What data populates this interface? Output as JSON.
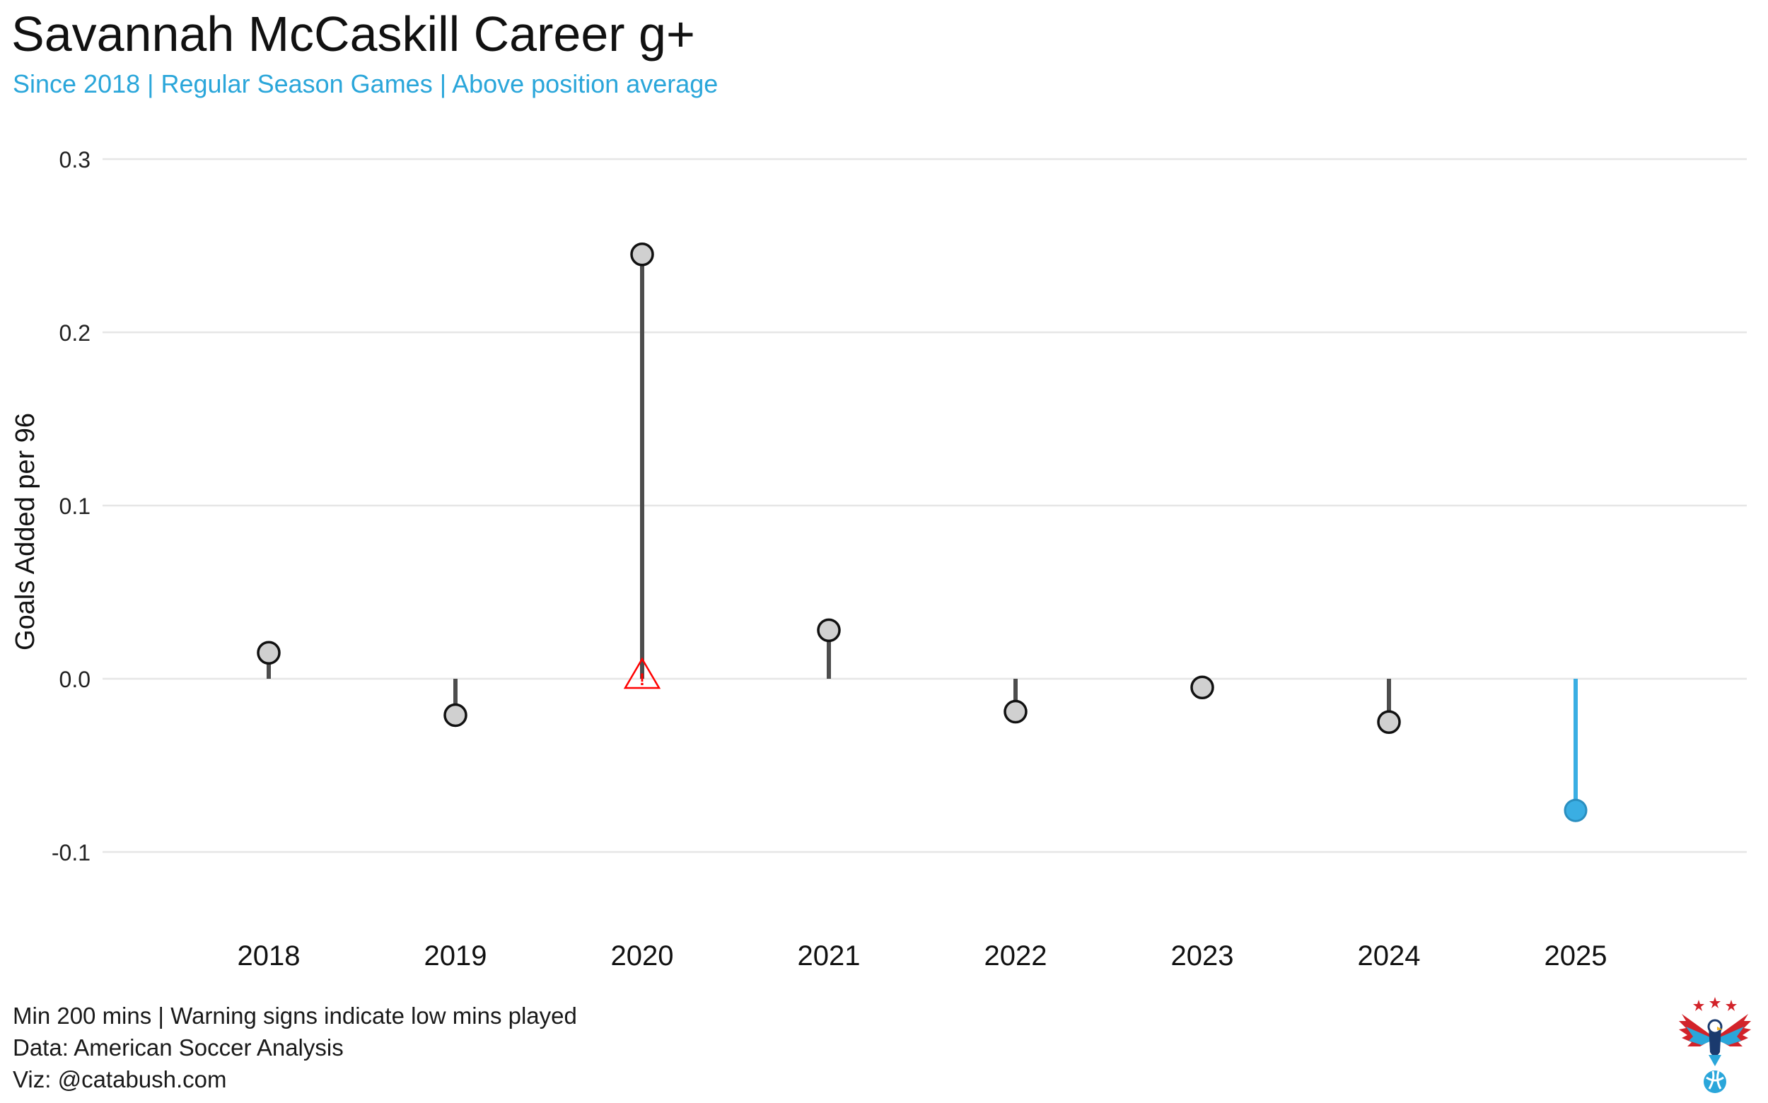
{
  "header": {
    "title": "Savannah McCaskill Career g+",
    "subtitle": "Since 2018 | Regular Season Games | Above position average"
  },
  "footer": {
    "caption_1": "Min 200 mins | Warning signs indicate low mins played",
    "caption_2": "Data: American Soccer Analysis",
    "caption_3": "Viz: @catabush.com"
  },
  "logo": {
    "icon": "eagle-with-stars-and-soccer-ball-logo",
    "colors": [
      "#d2232a",
      "#2aa6da",
      "#1a3a6e"
    ]
  },
  "chart_data": {
    "type": "lollipop",
    "title": "Savannah McCaskill Career g+",
    "subtitle": "Since 2018 | Regular Season Games | Above position average",
    "xlabel": "",
    "ylabel": "Goals Added per 96",
    "categories": [
      "2018",
      "2019",
      "2020",
      "2021",
      "2022",
      "2023",
      "2024",
      "2025"
    ],
    "values": [
      0.015,
      -0.021,
      0.245,
      0.028,
      -0.019,
      -0.005,
      -0.025,
      -0.076
    ],
    "highlight": [
      false,
      false,
      false,
      false,
      false,
      false,
      false,
      true
    ],
    "low_minutes_warning": [
      false,
      false,
      true,
      false,
      false,
      false,
      false,
      false
    ],
    "ylim": [
      -0.14,
      0.31
    ],
    "yticks": [
      -0.1,
      0.0,
      0.1,
      0.2,
      0.3
    ],
    "ytick_labels": [
      "-0.1",
      "0.0",
      "0.1",
      "0.2",
      "0.3"
    ],
    "grid": "horizontal",
    "colors": {
      "stem": "#4d4d4d",
      "point_fill": "#d0d0d0",
      "point_stroke": "#111111",
      "highlight": "#3aaee3",
      "warning": "#ff0000",
      "grid": "#e6e6e6"
    }
  }
}
